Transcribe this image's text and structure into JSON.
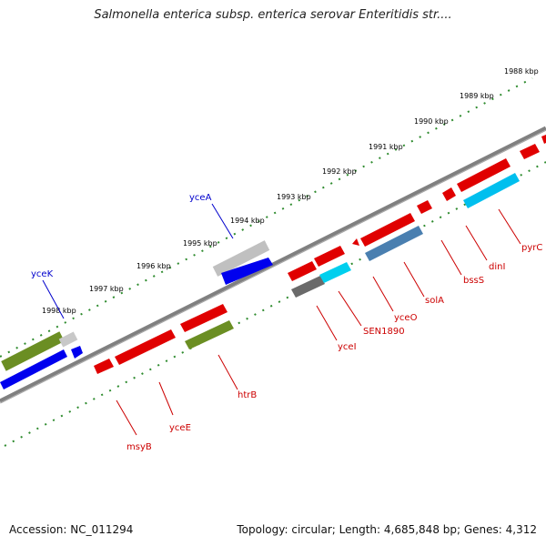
{
  "title": "Salmonella enterica subsp. enterica serovar Enteritidis str....",
  "accession_text": "Accession: NC_011294",
  "summary_text": "Topology: circular; Length: 4,685,848 bp; Genes: 4,312",
  "colors": {
    "backbone": "#808080",
    "tick": "#2e8b2e",
    "forward_gene": "#e00000",
    "reverse_gene_label": "#cc0000",
    "top_label": "#0000cc",
    "blue": "#0000ee",
    "cyan": "#00cfee",
    "steel": "#4a7fb0",
    "olive": "#6b8e23",
    "gray": "#6a6a6a",
    "lightgray": "#c8c8c8"
  },
  "kbp_scale": [
    {
      "kbp": 1988,
      "label": "1988 kbp"
    },
    {
      "kbp": 1989,
      "label": "1989 kbp"
    },
    {
      "kbp": 1990,
      "label": "1990 kbp"
    },
    {
      "kbp": 1991,
      "label": "1991 kbp"
    },
    {
      "kbp": 1992,
      "label": "1992 kbp"
    },
    {
      "kbp": 1993,
      "label": "1993 kbp"
    },
    {
      "kbp": 1994,
      "label": "1994 kbp"
    },
    {
      "kbp": 1995,
      "label": "1995 kbp"
    },
    {
      "kbp": 1996,
      "label": "1996 kbp"
    },
    {
      "kbp": 1997,
      "label": "1997 kbp"
    },
    {
      "kbp": 1998,
      "label": "1998 kbp"
    }
  ],
  "top_gene_labels": [
    {
      "name": "yceA",
      "color": "#0000cc"
    },
    {
      "name": "yceK",
      "color": "#0000cc"
    }
  ],
  "bottom_gene_labels": [
    {
      "name": "pyrC"
    },
    {
      "name": "dinI"
    },
    {
      "name": "bssS"
    },
    {
      "name": "solA"
    },
    {
      "name": "yceO"
    },
    {
      "name": "SEN1890"
    },
    {
      "name": "yceI"
    },
    {
      "name": "htrB"
    },
    {
      "name": "yceE"
    },
    {
      "name": "msyB"
    }
  ]
}
